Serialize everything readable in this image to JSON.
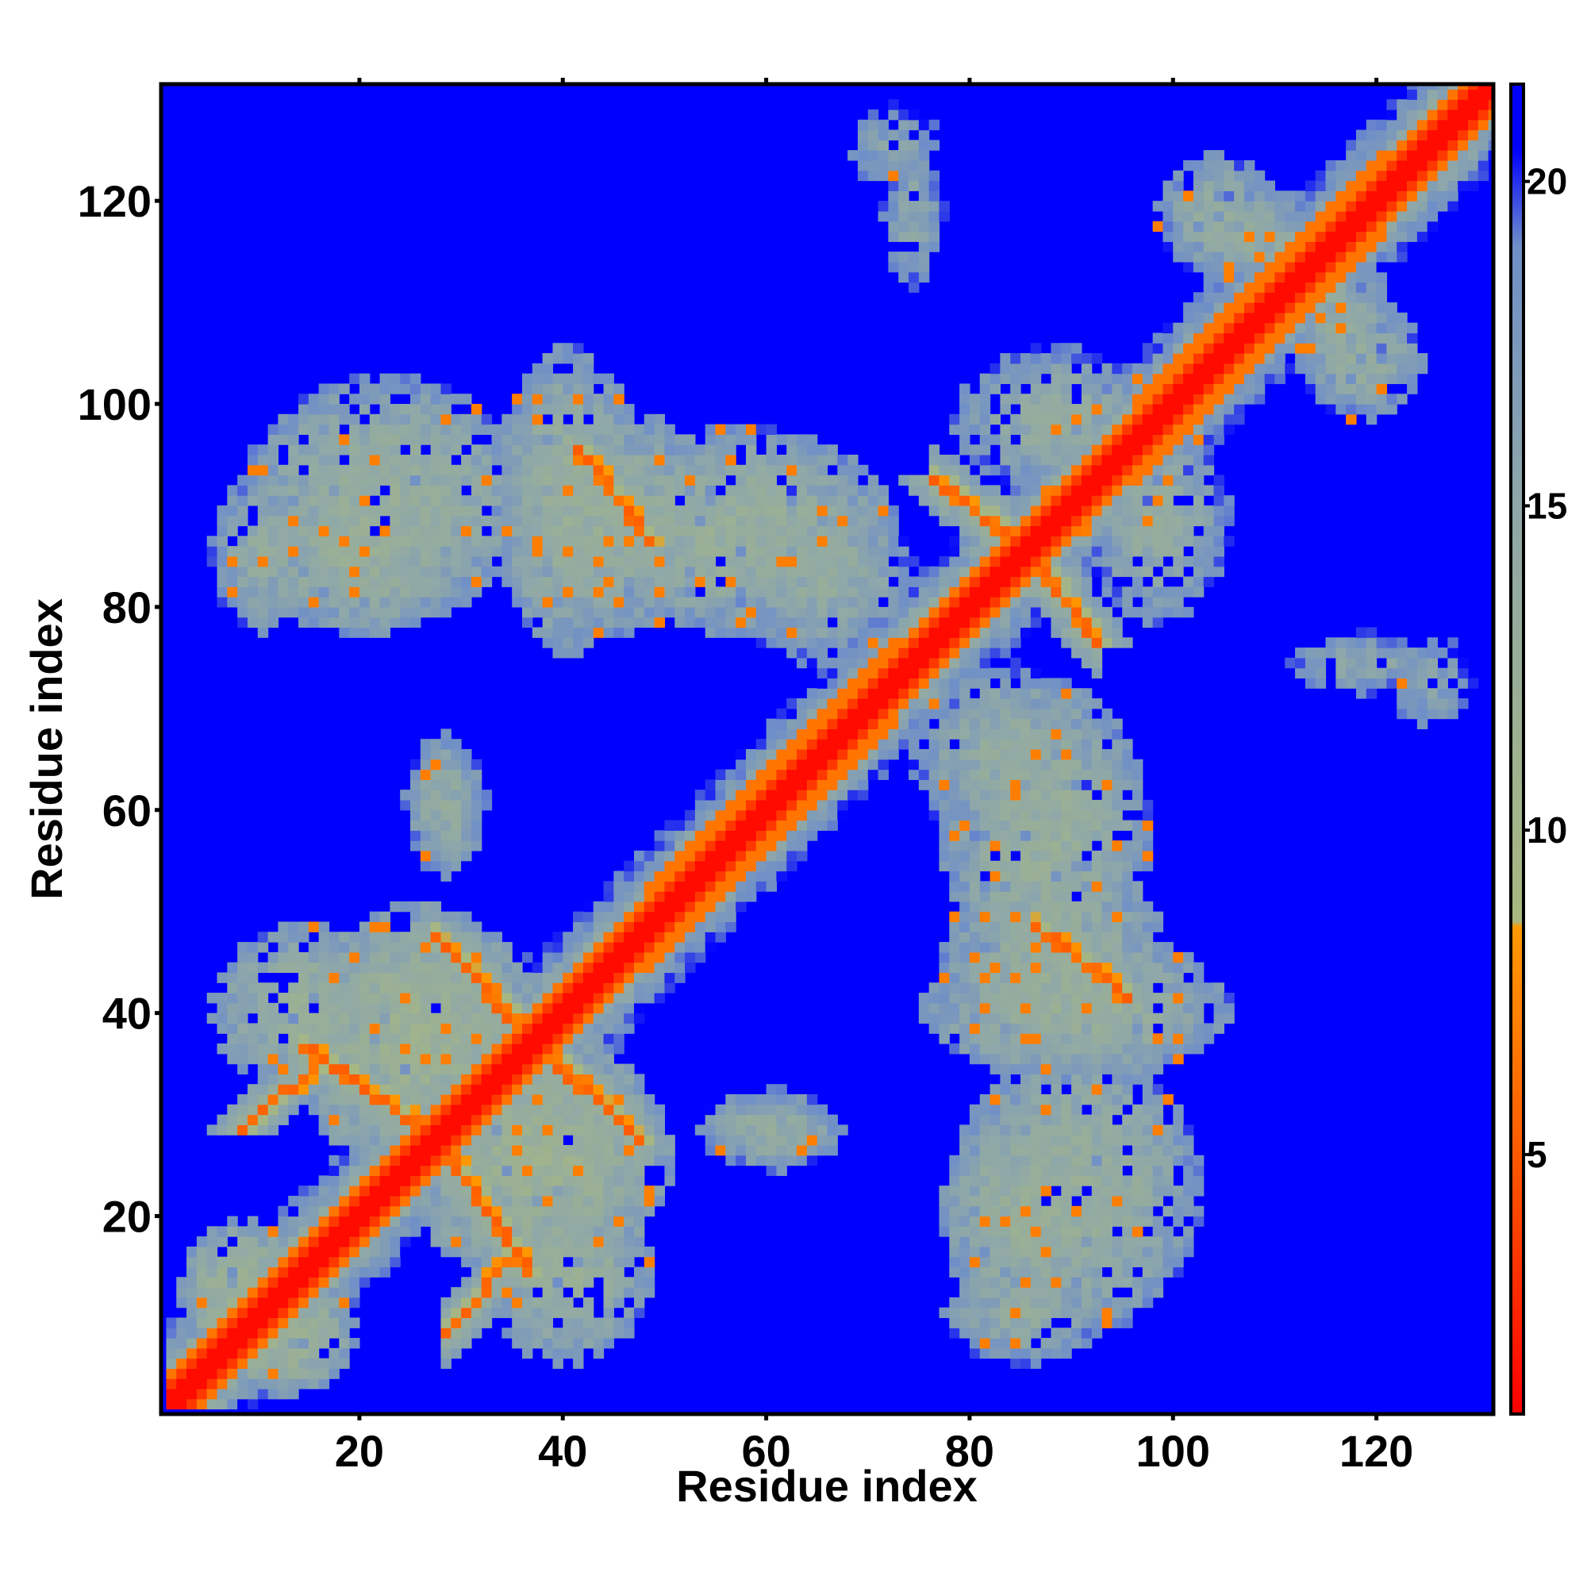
{
  "chart_data": {
    "type": "heatmap",
    "title": "",
    "xlabel": "Residue index",
    "ylabel": "Residue index",
    "n_residues": 131,
    "xlim": [
      1,
      131
    ],
    "ylim": [
      1,
      131
    ],
    "x_ticks": [
      20,
      40,
      60,
      80,
      100,
      120
    ],
    "y_ticks": [
      20,
      40,
      60,
      80,
      100,
      120
    ],
    "x_tick_labels": [
      "20",
      "40",
      "60",
      "80",
      "100",
      "120"
    ],
    "y_tick_labels": [
      "20",
      "40",
      "60",
      "80",
      "100",
      "120"
    ],
    "grid": false,
    "colorbar": {
      "range": [
        1,
        21.5
      ],
      "ticks": [
        5,
        10,
        15,
        20
      ],
      "tick_labels": [
        "5",
        "10",
        "15",
        "20"
      ],
      "stops": [
        {
          "value": 1,
          "color": "#ff0000"
        },
        {
          "value": 5,
          "color": "#ff5a00"
        },
        {
          "value": 8.5,
          "color": "#ff9900"
        },
        {
          "value": 8.6,
          "color": "#a8b880"
        },
        {
          "value": 15,
          "color": "#8fa8a8"
        },
        {
          "value": 19,
          "color": "#6f8fc8"
        },
        {
          "value": 20.5,
          "color": "#0000ff"
        }
      ]
    },
    "background_value": 21,
    "diagonal_band": {
      "core_width": 1.5,
      "orange_width": 3
    },
    "helix_regions": [
      {
        "start": 48,
        "end": 72
      },
      {
        "start": 96,
        "end": 120
      }
    ],
    "features": [
      {
        "kind": "antidiagonal",
        "from": [
          8,
          28
        ],
        "to": [
          16,
          35
        ],
        "value": 6
      },
      {
        "kind": "antidiagonal",
        "from": [
          15,
          36
        ],
        "to": [
          28,
          26
        ],
        "value": 6
      },
      {
        "kind": "antidiagonal",
        "from": [
          27,
          47
        ],
        "to": [
          36,
          37
        ],
        "value": 6
      },
      {
        "kind": "antidiagonal",
        "from": [
          36,
          38
        ],
        "to": [
          47,
          27
        ],
        "value": 6
      },
      {
        "kind": "antidiagonal",
        "from": [
          28,
          26
        ],
        "to": [
          36,
          14
        ],
        "value": 6
      },
      {
        "kind": "antidiagonal",
        "from": [
          41,
          95
        ],
        "to": [
          48,
          86
        ],
        "value": 6
      },
      {
        "kind": "antidiagonal",
        "from": [
          76,
          92
        ],
        "to": [
          85,
          85
        ],
        "value": 6
      },
      {
        "kind": "antidiagonal",
        "from": [
          86,
          84
        ],
        "to": [
          92,
          76
        ],
        "value": 6
      },
      {
        "kind": "antidiagonal",
        "from": [
          86,
          48
        ],
        "to": [
          94,
          42
        ],
        "value": 6
      },
      {
        "kind": "blob",
        "center": [
          20,
          85
        ],
        "size": [
          24,
          16
        ],
        "value": 13
      },
      {
        "kind": "blob",
        "center": [
          44,
          88
        ],
        "size": [
          22,
          22
        ],
        "value": 13
      },
      {
        "kind": "blob",
        "center": [
          65,
          83
        ],
        "size": [
          18,
          18
        ],
        "value": 14
      },
      {
        "kind": "blob",
        "center": [
          88,
          98
        ],
        "size": [
          20,
          14
        ],
        "value": 14
      },
      {
        "kind": "blob",
        "center": [
          25,
          37
        ],
        "size": [
          24,
          26
        ],
        "value": 12
      },
      {
        "kind": "blob",
        "center": [
          40,
          28
        ],
        "size": [
          16,
          20
        ],
        "value": 13
      },
      {
        "kind": "blob",
        "center": [
          40,
          14
        ],
        "size": [
          16,
          18
        ],
        "value": 13
      },
      {
        "kind": "blob",
        "center": [
          87,
          57
        ],
        "size": [
          20,
          30
        ],
        "value": 13
      },
      {
        "kind": "blob",
        "center": [
          90,
          40
        ],
        "size": [
          30,
          14
        ],
        "value": 13
      },
      {
        "kind": "blob",
        "center": [
          90,
          22
        ],
        "size": [
          24,
          28
        ],
        "value": 13
      },
      {
        "kind": "blob",
        "center": [
          85,
          10
        ],
        "size": [
          16,
          10
        ],
        "value": 14
      },
      {
        "kind": "blob",
        "center": [
          60,
          28
        ],
        "size": [
          14,
          8
        ],
        "value": 14
      },
      {
        "kind": "blob",
        "center": [
          12,
          8
        ],
        "size": [
          14,
          12
        ],
        "value": 12
      },
      {
        "kind": "blob",
        "center": [
          108,
          116
        ],
        "size": [
          14,
          10
        ],
        "value": 14
      },
      {
        "kind": "blob",
        "center": [
          118,
          104
        ],
        "size": [
          12,
          12
        ],
        "value": 14
      },
      {
        "kind": "blob",
        "center": [
          118,
          74
        ],
        "size": [
          14,
          6
        ],
        "value": 15
      },
      {
        "kind": "blob",
        "center": [
          72,
          125
        ],
        "size": [
          10,
          8
        ],
        "value": 16
      }
    ]
  }
}
